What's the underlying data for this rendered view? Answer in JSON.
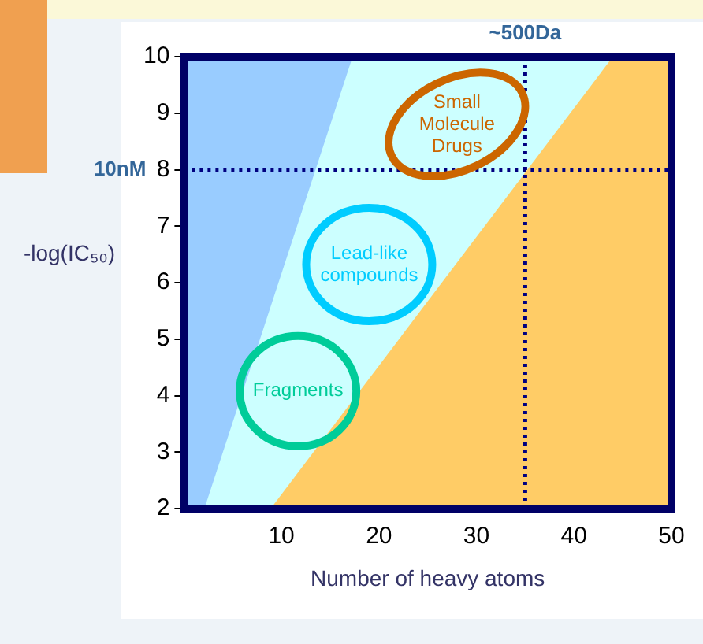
{
  "chart_data": {
    "type": "area",
    "xlabel": "Number of heavy atoms",
    "ylabel": "-log(IC₅₀)",
    "xlim": [
      0,
      50
    ],
    "ylim": [
      2,
      10
    ],
    "xticks": [
      10,
      20,
      30,
      40,
      50
    ],
    "yticks": [
      2,
      3,
      4,
      5,
      6,
      7,
      8,
      9,
      10
    ],
    "grid": false,
    "legend": false,
    "series": [
      {
        "color": "#99ccff",
        "x": [
          0,
          50
        ],
        "values": [
          10,
          10
        ]
      },
      {
        "color": "#ccffff",
        "x": [
          2.1,
          17.3,
          50
        ],
        "values": [
          2,
          10,
          10
        ]
      },
      {
        "color": "#ffcc66",
        "x": [
          8.9,
          44,
          50
        ],
        "values": [
          2,
          10,
          10
        ]
      }
    ],
    "ref_lines": [
      {
        "axis": "y",
        "value": 8,
        "label": "10nM",
        "color": "#000080",
        "line_style": "dotted"
      },
      {
        "axis": "x",
        "value": 35,
        "label": "~500Da",
        "color": "#000080",
        "line_style": "dotted"
      }
    ],
    "annotations": [
      "Small\nMolecule\nDrugs",
      "Lead-like\ncompounds",
      "Fragments"
    ]
  }
}
